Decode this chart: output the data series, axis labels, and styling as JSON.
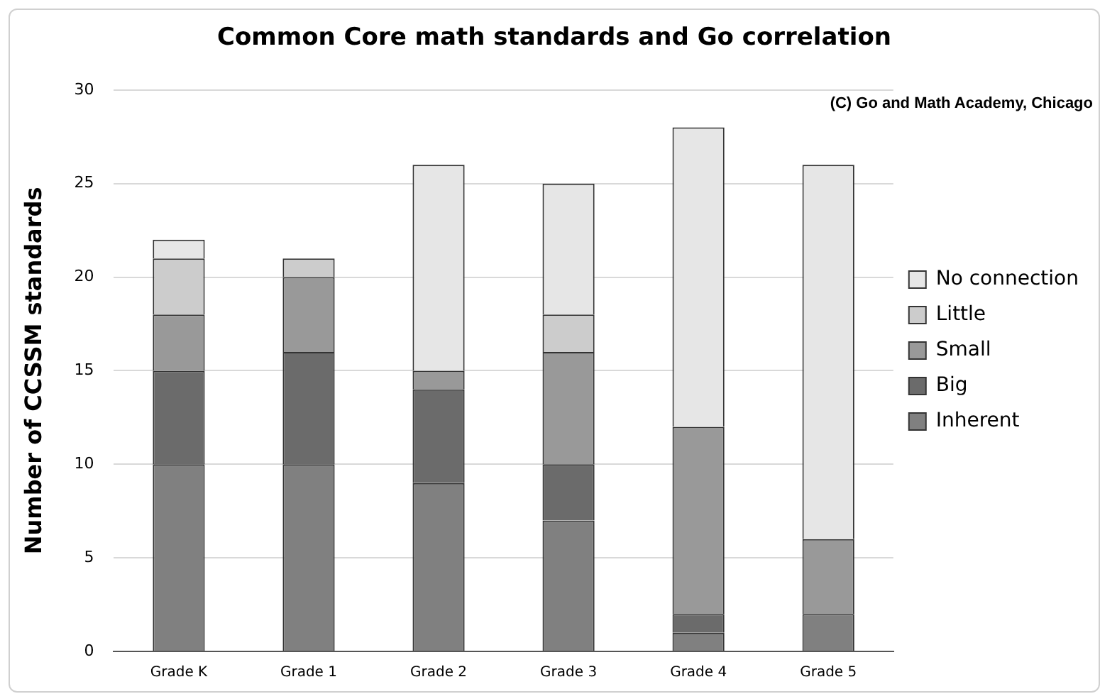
{
  "chart_data": {
    "type": "bar",
    "title": "Common Core math standards and Go correlation",
    "ylabel": "Number of CCSSM standards",
    "annotations": [
      "(C) Go and Math Academy, Chicago"
    ],
    "categories": [
      "Grade K",
      "Grade 1",
      "Grade 2",
      "Grade 3",
      "Grade 4",
      "Grade 5"
    ],
    "series": [
      {
        "name": "Inherent",
        "color": "#808080",
        "values": [
          10,
          10,
          9,
          7,
          1,
          2
        ]
      },
      {
        "name": "Big",
        "color": "#6b6b6b",
        "values": [
          5,
          6,
          5,
          3,
          1,
          0
        ]
      },
      {
        "name": "Small",
        "color": "#999999",
        "values": [
          3,
          4,
          1,
          6,
          10,
          4
        ]
      },
      {
        "name": "Little",
        "color": "#cccccc",
        "values": [
          3,
          1,
          0,
          2,
          0,
          0
        ]
      },
      {
        "name": "No connection",
        "color": "#e6e6e6",
        "values": [
          1,
          0,
          11,
          7,
          16,
          20
        ]
      }
    ],
    "stacked": true,
    "ylim": [
      0,
      30
    ],
    "yticks": [
      0,
      5,
      10,
      15,
      20,
      25,
      30
    ],
    "grid": "y",
    "legend": "right"
  }
}
